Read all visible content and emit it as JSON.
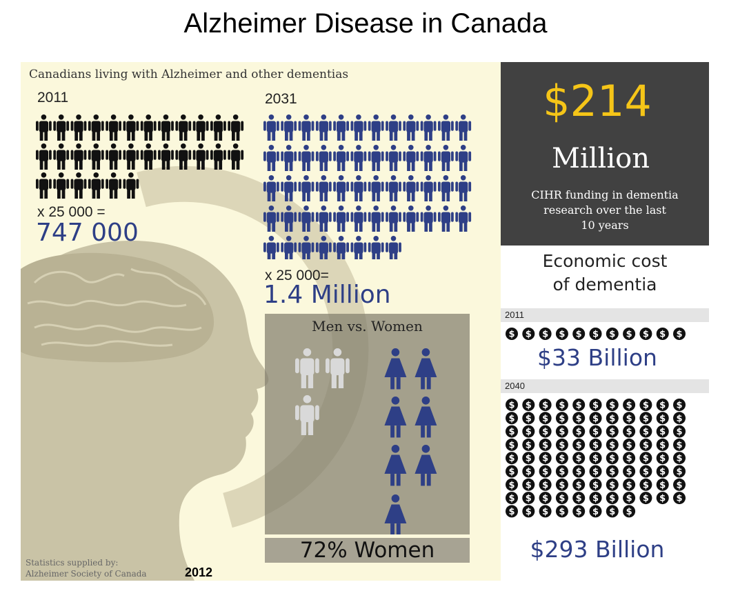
{
  "title": "Alzheimer Disease in Canada",
  "prevalence": {
    "heading": "Canadians living with Alzheimer and other dementias",
    "year_2011": {
      "label": "2011",
      "icon_count": 30,
      "multiplier_text": "x 25 000 =",
      "total": "747 000"
    },
    "year_2031": {
      "label": "2031",
      "icon_count": 56,
      "multiplier_text": "x 25 000=",
      "total": "1.4 Million"
    }
  },
  "men_vs_women": {
    "title": "Men vs. Women",
    "men_icons": 3,
    "women_icons": 7,
    "summary": "72% Women"
  },
  "funding": {
    "amount": "$214",
    "unit": "Million",
    "description_lines": [
      "CIHR funding in dementia",
      "research over the last",
      "10 years"
    ]
  },
  "economic_cost": {
    "title_lines": [
      "Economic cost",
      "of dementia"
    ],
    "year_2011": {
      "label": "2011",
      "coin_count": 11,
      "value": "$33 Billion"
    },
    "year_2040": {
      "label": "2040",
      "coin_count": 96,
      "value": "$293 Billion"
    }
  },
  "credit": {
    "line1": "Statistics supplied by:",
    "line2": "Alzheimer Society of Canada",
    "year": "2012"
  },
  "colors": {
    "panel_bg": "#fbf8dc",
    "navy": "#2e3f86",
    "dark_box": "#414141",
    "gold": "#f5c518",
    "light_person": "#d9d9d9"
  },
  "icons": {
    "person": "person-icon",
    "woman": "woman-icon",
    "coin": "dollar-coin-icon",
    "brain": "brain-head-silhouette"
  }
}
